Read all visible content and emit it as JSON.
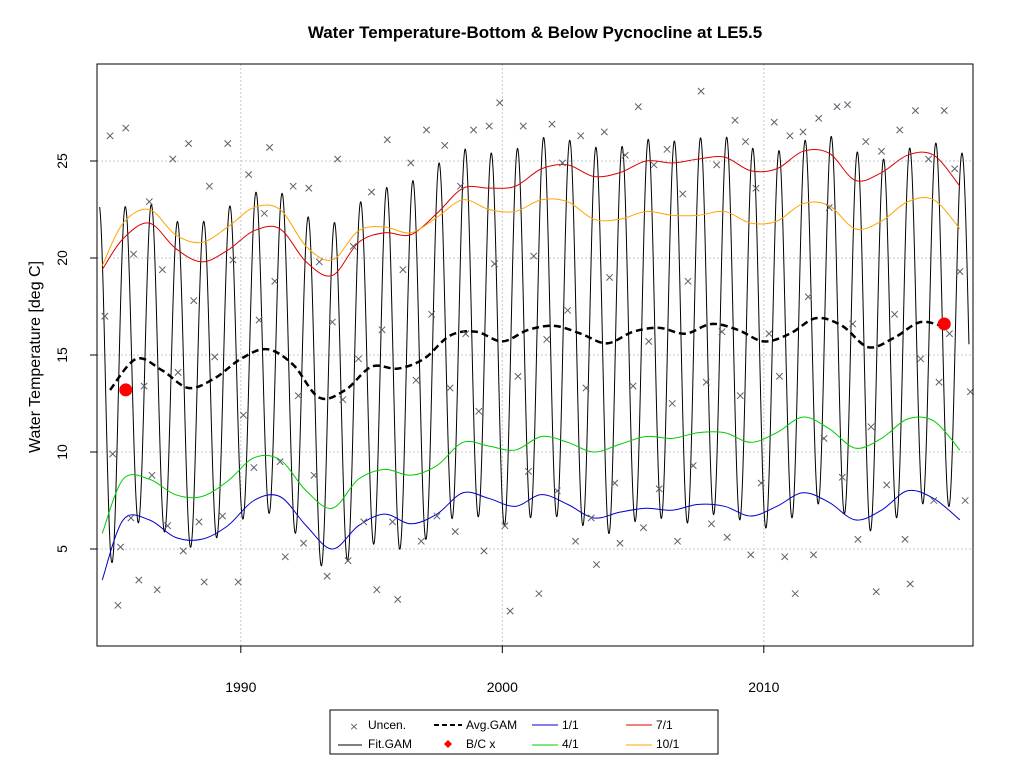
{
  "chart_data": {
    "type": "line",
    "title": "Water Temperature-Bottom & Below Pycnocline at LE5.5",
    "xlabel": "",
    "ylabel": "Water Temperature [deg C]",
    "xlim": [
      1984.5,
      2018.0
    ],
    "ylim": [
      0,
      30
    ],
    "xticks": [
      1990,
      2000,
      2010
    ],
    "yticks": [
      5,
      10,
      15,
      20,
      25
    ],
    "grid": true,
    "legend_position": "bottom",
    "legend": [
      {
        "label": "Uncen.",
        "kind": "cross",
        "color": "#5a6070"
      },
      {
        "label": "Fit.GAM",
        "kind": "line",
        "color": "#000000"
      },
      {
        "label": "Avg.GAM",
        "kind": "dashed",
        "color": "#000000"
      },
      {
        "label": "B/C x",
        "kind": "diamond",
        "color": "#ff0000"
      },
      {
        "label": "1/1",
        "kind": "line",
        "color": "#0000cc"
      },
      {
        "label": "4/1",
        "kind": "line",
        "color": "#00cc00"
      },
      {
        "label": "7/1",
        "kind": "line",
        "color": "#dd0000"
      },
      {
        "label": "10/1",
        "kind": "line",
        "color": "#ffa500"
      }
    ],
    "series": [
      {
        "name": "Avg.GAM",
        "x": [
          1985.0,
          1986.0,
          1987.0,
          1988.0,
          1989.0,
          1990.0,
          1991.0,
          1992.0,
          1993.0,
          1994.0,
          1995.0,
          1996.0,
          1997.0,
          1998.0,
          1999.0,
          2000.0,
          2001.0,
          2002.0,
          2003.0,
          2004.0,
          2005.0,
          2006.0,
          2007.0,
          2008.0,
          2009.0,
          2010.0,
          2011.0,
          2012.0,
          2013.0,
          2014.0,
          2015.0,
          2016.0,
          2017.0
        ],
        "y": [
          13.2,
          14.8,
          14.2,
          13.3,
          13.8,
          14.8,
          15.3,
          14.5,
          12.8,
          13.2,
          14.4,
          14.3,
          14.8,
          16.0,
          16.2,
          15.7,
          16.3,
          16.5,
          16.1,
          15.6,
          16.2,
          16.4,
          16.1,
          16.6,
          16.3,
          15.7,
          16.1,
          16.9,
          16.5,
          15.4,
          15.9,
          16.7,
          16.4
        ]
      },
      {
        "name": "1/1",
        "x": [
          1984.7,
          1985.5,
          1986.5,
          1987.5,
          1988.5,
          1989.5,
          1990.5,
          1991.5,
          1992.5,
          1993.5,
          1994.5,
          1995.5,
          1996.5,
          1997.5,
          1998.5,
          1999.5,
          2000.5,
          2001.5,
          2002.5,
          2003.5,
          2004.5,
          2005.5,
          2006.5,
          2007.5,
          2008.5,
          2009.5,
          2010.5,
          2011.5,
          2012.5,
          2013.5,
          2014.5,
          2015.5,
          2016.5,
          2017.5
        ],
        "y": [
          3.4,
          6.5,
          6.5,
          5.6,
          5.5,
          6.2,
          7.5,
          7.7,
          6.2,
          5.0,
          6.2,
          6.8,
          6.3,
          6.8,
          7.9,
          7.6,
          7.2,
          7.8,
          7.3,
          6.6,
          6.9,
          7.1,
          7.0,
          7.3,
          7.2,
          6.7,
          7.2,
          7.9,
          7.4,
          6.5,
          7.0,
          8.0,
          7.6,
          6.5
        ]
      },
      {
        "name": "4/1",
        "x": [
          1984.7,
          1985.5,
          1986.5,
          1987.5,
          1988.5,
          1989.5,
          1990.5,
          1991.5,
          1992.5,
          1993.5,
          1994.5,
          1995.5,
          1996.5,
          1997.5,
          1998.5,
          1999.5,
          2000.5,
          2001.5,
          2002.5,
          2003.5,
          2004.5,
          2005.5,
          2006.5,
          2007.5,
          2008.5,
          2009.5,
          2010.5,
          2011.5,
          2012.5,
          2013.5,
          2014.5,
          2015.5,
          2016.5,
          2017.5
        ],
        "y": [
          5.8,
          8.6,
          8.6,
          7.8,
          7.7,
          8.5,
          9.7,
          9.6,
          8.0,
          7.1,
          8.6,
          9.1,
          8.8,
          9.3,
          10.5,
          10.3,
          10.1,
          10.8,
          10.5,
          10.0,
          10.4,
          10.8,
          10.7,
          11.0,
          11.0,
          10.5,
          11.0,
          11.8,
          11.2,
          10.2,
          10.7,
          11.7,
          11.6,
          10.1
        ]
      },
      {
        "name": "7/1",
        "x": [
          1984.7,
          1985.5,
          1986.5,
          1987.5,
          1988.5,
          1989.5,
          1990.5,
          1991.5,
          1992.5,
          1993.5,
          1994.5,
          1995.5,
          1996.5,
          1997.5,
          1998.5,
          1999.5,
          2000.5,
          2001.5,
          2002.5,
          2003.5,
          2004.5,
          2005.5,
          2006.5,
          2007.5,
          2008.5,
          2009.5,
          2010.5,
          2011.5,
          2012.5,
          2013.5,
          2014.5,
          2015.5,
          2016.5,
          2017.5
        ],
        "y": [
          19.4,
          21.0,
          21.8,
          20.5,
          19.8,
          20.4,
          21.4,
          21.5,
          19.8,
          19.1,
          20.8,
          21.3,
          21.2,
          22.3,
          23.6,
          23.6,
          23.7,
          24.6,
          24.8,
          24.2,
          24.4,
          25.0,
          24.9,
          25.1,
          25.2,
          24.5,
          24.6,
          25.5,
          25.4,
          24.0,
          24.4,
          25.3,
          25.3,
          23.7
        ]
      },
      {
        "name": "10/1",
        "x": [
          1984.7,
          1985.5,
          1986.5,
          1987.5,
          1988.5,
          1989.5,
          1990.5,
          1991.5,
          1992.5,
          1993.5,
          1994.5,
          1995.5,
          1996.5,
          1997.5,
          1998.5,
          1999.5,
          2000.5,
          2001.5,
          2002.5,
          2003.5,
          2004.5,
          2005.5,
          2006.5,
          2007.5,
          2008.5,
          2009.5,
          2010.5,
          2011.5,
          2012.5,
          2013.5,
          2014.5,
          2015.5,
          2016.5,
          2017.5
        ],
        "y": [
          19.6,
          21.8,
          22.5,
          21.2,
          20.8,
          21.6,
          22.6,
          22.5,
          20.6,
          19.9,
          21.4,
          21.6,
          21.3,
          22.1,
          23.0,
          22.5,
          22.4,
          23.0,
          22.9,
          22.0,
          22.0,
          22.4,
          22.2,
          22.2,
          22.4,
          21.8,
          21.9,
          22.8,
          22.7,
          21.5,
          21.9,
          22.9,
          23.0,
          21.5
        ]
      },
      {
        "name": "Fit.GAM",
        "x_start": 1984.6,
        "x_end": 2017.85,
        "period_years": 1.0,
        "note_seasonal_amplitude": [
          9.5,
          8.5,
          8.3,
          8.2,
          8.3,
          8.3,
          8.3,
          8.5,
          8.6,
          8.8,
          9.0,
          9.3,
          9.4,
          9.4,
          9.5,
          9.5,
          9.6,
          9.8,
          9.8,
          9.9,
          9.8,
          9.8,
          9.8,
          9.8,
          9.8,
          9.7,
          9.6,
          9.5,
          9.6,
          9.6,
          9.4,
          9.3,
          9.4,
          9.0
        ]
      }
    ],
    "bc_points": {
      "name": "B/C x",
      "x": [
        1985.6,
        2016.9
      ],
      "y": [
        13.2,
        16.6
      ]
    },
    "uncensored_points": {
      "name": "Uncen.",
      "x": [
        1984.8,
        1985.0,
        1985.1,
        1985.3,
        1985.4,
        1985.6,
        1985.8,
        1985.9,
        1986.1,
        1986.3,
        1986.5,
        1986.6,
        1986.8,
        1987.0,
        1987.2,
        1987.4,
        1987.6,
        1987.8,
        1988.0,
        1988.2,
        1988.4,
        1988.6,
        1988.8,
        1989.0,
        1989.3,
        1989.5,
        1989.7,
        1989.9,
        1990.1,
        1990.3,
        1990.5,
        1990.7,
        1990.9,
        1991.1,
        1991.3,
        1991.5,
        1991.7,
        1992.0,
        1992.2,
        1992.4,
        1992.6,
        1992.8,
        1993.0,
        1993.3,
        1993.5,
        1993.7,
        1993.9,
        1994.1,
        1994.3,
        1994.5,
        1994.7,
        1995.0,
        1995.2,
        1995.4,
        1995.6,
        1995.8,
        1996.0,
        1996.2,
        1996.5,
        1996.7,
        1996.9,
        1997.1,
        1997.3,
        1997.5,
        1997.8,
        1998.0,
        1998.2,
        1998.4,
        1998.6,
        1998.9,
        1999.1,
        1999.3,
        1999.5,
        1999.7,
        1999.9,
        2000.1,
        2000.3,
        2000.6,
        2000.8,
        2001.0,
        2001.2,
        2001.4,
        2001.7,
        2001.9,
        2002.1,
        2002.3,
        2002.5,
        2002.8,
        2003.0,
        2003.2,
        2003.4,
        2003.6,
        2003.9,
        2004.1,
        2004.3,
        2004.5,
        2004.7,
        2005.0,
        2005.2,
        2005.4,
        2005.6,
        2005.8,
        2006.0,
        2006.3,
        2006.5,
        2006.7,
        2006.9,
        2007.1,
        2007.3,
        2007.6,
        2007.8,
        2008.0,
        2008.2,
        2008.4,
        2008.6,
        2008.9,
        2009.1,
        2009.3,
        2009.5,
        2009.7,
        2009.9,
        2010.2,
        2010.4,
        2010.6,
        2010.8,
        2011.0,
        2011.2,
        2011.5,
        2011.7,
        2011.9,
        2012.1,
        2012.3,
        2012.5,
        2012.8,
        2013.0,
        2013.2,
        2013.4,
        2013.6,
        2013.9,
        2014.1,
        2014.3,
        2014.5,
        2014.7,
        2015.0,
        2015.2,
        2015.4,
        2015.6,
        2015.8,
        2016.0,
        2016.3,
        2016.5,
        2016.7,
        2016.9,
        2017.1,
        2017.3,
        2017.5,
        2017.7,
        2017.9
      ],
      "y": [
        17.0,
        26.3,
        9.9,
        2.1,
        5.1,
        26.7,
        6.6,
        20.2,
        3.4,
        13.4,
        22.9,
        8.8,
        2.9,
        19.4,
        6.2,
        25.1,
        14.1,
        4.9,
        25.9,
        17.8,
        6.4,
        3.3,
        23.7,
        14.9,
        6.7,
        25.9,
        19.9,
        3.3,
        11.9,
        24.3,
        9.2,
        16.8,
        22.3,
        25.7,
        18.8,
        9.5,
        4.6,
        23.7,
        12.9,
        5.3,
        23.6,
        8.8,
        19.8,
        3.6,
        16.7,
        25.1,
        12.7,
        4.4,
        20.6,
        14.8,
        6.4,
        23.4,
        2.9,
        16.3,
        26.1,
        6.4,
        2.4,
        19.4,
        24.9,
        13.7,
        5.4,
        26.6,
        17.1,
        6.7,
        25.8,
        13.3,
        5.9,
        23.7,
        16.1,
        26.6,
        12.1,
        4.9,
        26.8,
        19.7,
        28.0,
        6.2,
        1.8,
        13.9,
        26.8,
        9.0,
        20.1,
        2.7,
        15.8,
        26.9,
        8.0,
        24.9,
        17.3,
        5.4,
        26.3,
        13.3,
        6.6,
        4.2,
        26.5,
        19.0,
        8.4,
        5.3,
        25.3,
        13.4,
        27.8,
        6.1,
        15.7,
        24.8,
        8.1,
        25.6,
        12.5,
        5.4,
        23.3,
        18.8,
        9.3,
        28.6,
        13.6,
        6.3,
        24.8,
        16.2,
        5.6,
        27.1,
        12.9,
        26.0,
        4.7,
        23.6,
        8.4,
        16.1,
        27.0,
        13.9,
        4.6,
        26.3,
        2.7,
        26.5,
        18.0,
        4.7,
        27.2,
        10.7,
        22.6,
        27.8,
        8.7,
        27.9,
        16.6,
        5.5,
        26.0,
        11.3,
        2.8,
        25.5,
        8.3,
        17.1,
        26.6,
        5.5,
        3.2,
        27.6,
        14.8,
        25.1,
        7.5,
        13.6,
        27.6,
        16.1,
        24.6,
        19.3,
        7.5,
        13.1
      ]
    }
  }
}
